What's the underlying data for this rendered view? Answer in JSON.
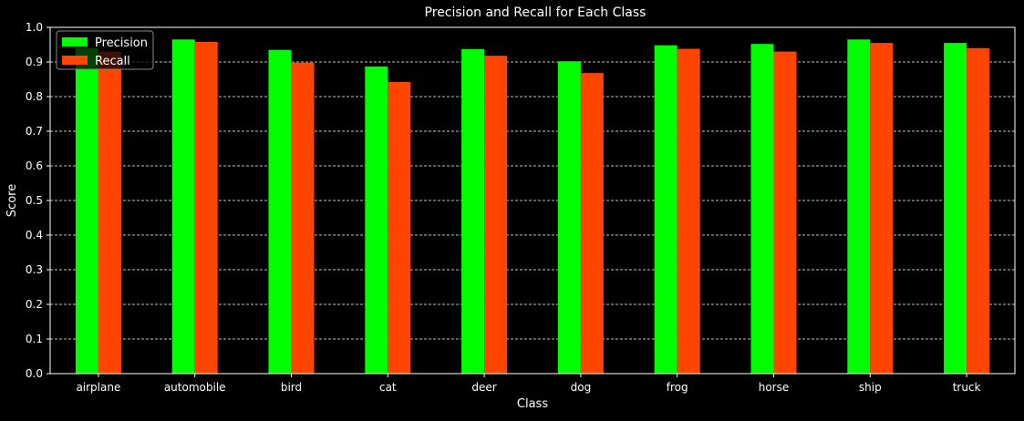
{
  "chart_data": {
    "type": "bar",
    "title": "Precision and Recall for Each Class",
    "xlabel": "Class",
    "ylabel": "Score",
    "ylim": [
      0,
      1.0
    ],
    "yticks": [
      "0.0",
      "0.1",
      "0.2",
      "0.3",
      "0.4",
      "0.5",
      "0.6",
      "0.7",
      "0.8",
      "0.9",
      "1.0"
    ],
    "grid": "horizontal dashed",
    "legend_position": "top-left",
    "categories": [
      "airplane",
      "automobile",
      "bird",
      "cat",
      "deer",
      "dog",
      "frog",
      "horse",
      "ship",
      "truck"
    ],
    "series": [
      {
        "name": "Precision",
        "color": "#00ff00",
        "values": [
          0.94,
          0.965,
          0.935,
          0.887,
          0.937,
          0.902,
          0.948,
          0.952,
          0.965,
          0.955
        ]
      },
      {
        "name": "Recall",
        "color": "#ff4500",
        "values": [
          0.93,
          0.958,
          0.898,
          0.842,
          0.918,
          0.868,
          0.938,
          0.93,
          0.955,
          0.94
        ]
      }
    ]
  },
  "colors": {
    "background": "#000000",
    "axes": "#ffffff",
    "grid": "#ffffff",
    "text": "#ffffff"
  }
}
